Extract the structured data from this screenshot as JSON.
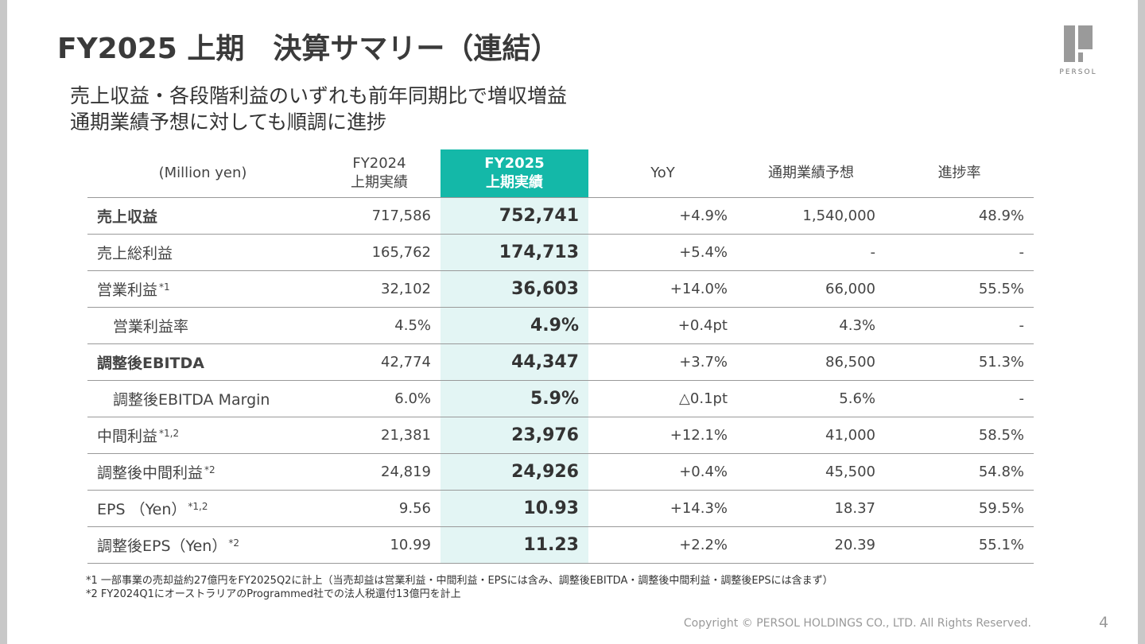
{
  "header": {
    "title": "FY2025 上期　決算サマリー（連結）",
    "logo": "PERSOL"
  },
  "subtitle": [
    "売上収益・各段階利益のいずれも前年同期比で増収増益",
    "通期業績予想に対しても順調に進捗"
  ],
  "table": {
    "columns": [
      [
        "(Million yen)"
      ],
      [
        "FY2024",
        "上期実績"
      ],
      [
        "FY2025",
        "上期実績"
      ],
      [
        "YoY"
      ],
      [
        "通期業績予想"
      ],
      [
        "進捗率"
      ]
    ],
    "rows": [
      {
        "label": "売上収益",
        "cells": [
          "717,586",
          "752,741",
          "+4.9%",
          "1,540,000",
          "48.9%"
        ]
      },
      {
        "label": "売上総利益",
        "cells": [
          "165,762",
          "174,713",
          "+5.4%",
          "-",
          "-"
        ]
      },
      {
        "label": "営業利益",
        "note": "*1",
        "cells": [
          "32,102",
          "36,603",
          "+14.0%",
          "66,000",
          "55.5%"
        ]
      },
      {
        "label": "営業利益率",
        "cells": [
          "4.5%",
          "4.9%",
          "+0.4pt",
          "4.3%",
          "-"
        ]
      },
      {
        "label": "調整後EBITDA",
        "cells": [
          "42,774",
          "44,347",
          "+3.7%",
          "86,500",
          "51.3%"
        ]
      },
      {
        "label": "調整後EBITDA Margin",
        "cells": [
          "6.0%",
          "5.9%",
          "△0.1pt",
          "5.6%",
          "-"
        ]
      },
      {
        "label": "中間利益",
        "note": "*1,2",
        "cells": [
          "21,381",
          "23,976",
          "+12.1%",
          "41,000",
          "58.5%"
        ]
      },
      {
        "label": "調整後中間利益",
        "note": "*2",
        "cells": [
          "24,819",
          "24,926",
          "+0.4%",
          "45,500",
          "54.8%"
        ]
      },
      {
        "label": "EPS （Yen）",
        "note": "*1,2",
        "cells": [
          "9.56",
          "10.93",
          "+14.3%",
          "18.37",
          "59.5%"
        ]
      },
      {
        "label": "調整後EPS（Yen）",
        "note": "*2",
        "cells": [
          "10.99",
          "11.23",
          "+2.2%",
          "20.39",
          "55.1%"
        ]
      }
    ]
  },
  "footnotes": [
    "*1 一部事業の売却益約27億円をFY2025Q2に計上（当売却益は営業利益・中間利益・EPSには含み、調整後EBITDA・調整後中間利益・調整後EPSには含まず）",
    "*2 FY2024Q1にオーストラリアのProgrammed社での法人税還付13億円を計上"
  ],
  "footer": {
    "copyright": "Copyright © PERSOL HOLDINGS CO., LTD. All Rights Reserved.",
    "page": "4"
  }
}
